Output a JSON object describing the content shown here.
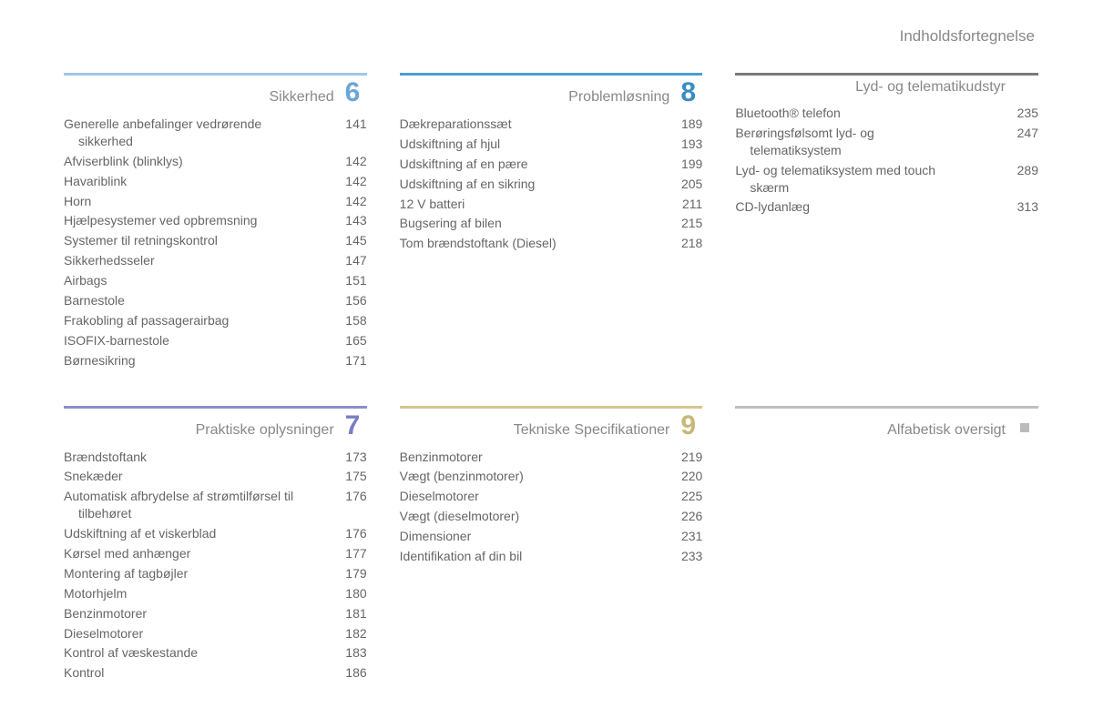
{
  "page_header": "Indholdsfortegnelse",
  "sections": [
    {
      "id": "sikkerhed",
      "title": "Sikkerhed",
      "number": "6",
      "border_color": "#9ec7e8",
      "number_color": "#6aa6d6",
      "row": 1,
      "col": 1,
      "entries": [
        {
          "label": "Generelle anbefalinger vedrørende",
          "label2": "sikkerhed",
          "page": "141"
        },
        {
          "label": "Afviserblink (blinklys)",
          "page": "142"
        },
        {
          "label": "Havariblink",
          "page": "142"
        },
        {
          "label": "Horn",
          "page": "142"
        },
        {
          "label": "Hjælpesystemer ved opbremsning",
          "page": "143"
        },
        {
          "label": "Systemer til retningskontrol",
          "page": "145"
        },
        {
          "label": "Sikkerhedsseler",
          "page": "147"
        },
        {
          "label": "Airbags",
          "page": "151"
        },
        {
          "label": "Barnestole",
          "page": "156"
        },
        {
          "label": "Frakobling af passagerairbag",
          "page": "158"
        },
        {
          "label": "ISOFIX-barnestole",
          "page": "165"
        },
        {
          "label": "Børnesikring",
          "page": "171"
        }
      ]
    },
    {
      "id": "problemlosning",
      "title": "Problemløsning",
      "number": "8",
      "border_color": "#4a9dcf",
      "number_color": "#3a8cc2",
      "row": 1,
      "col": 2,
      "entries": [
        {
          "label": "Dækreparationssæt",
          "page": "189"
        },
        {
          "label": "Udskiftning af hjul",
          "page": "193"
        },
        {
          "label": "Udskiftning af en pære",
          "page": "199"
        },
        {
          "label": "Udskiftning af en sikring",
          "page": "205"
        },
        {
          "label": "12 V batteri",
          "page": "211"
        },
        {
          "label": "Bugsering af bilen",
          "page": "215"
        },
        {
          "label": "Tom brændstoftank (Diesel)",
          "page": "218"
        }
      ]
    },
    {
      "id": "lyd-telematik",
      "title": "Lyd- og telematikudstyr",
      "number": "",
      "border_color": "#7a7a7a",
      "number_color": "#7a7a7a",
      "row": 1,
      "col": 3,
      "entries": [
        {
          "label": "Bluetooth® telefon",
          "page": "235"
        },
        {
          "label": "Berøringsfølsomt lyd- og",
          "label2": "telematiksystem",
          "page": "247"
        },
        {
          "label": "Lyd- og telematiksystem med touch",
          "label2": "skærm",
          "page": "289"
        },
        {
          "label": "CD-lydanlæg",
          "page": "313"
        }
      ]
    },
    {
      "id": "praktiske",
      "title": "Praktiske oplysninger",
      "number": "7",
      "border_color": "#8a8ec9",
      "number_color": "#7a7fc0",
      "row": 2,
      "col": 1,
      "entries": [
        {
          "label": "Brændstoftank",
          "page": "173"
        },
        {
          "label": "Snekæder",
          "page": "175"
        },
        {
          "label": "Automatisk afbrydelse af strømtilførsel til",
          "label2": "tilbehøret",
          "page": "176"
        },
        {
          "label": "Udskiftning af et viskerblad",
          "page": "176"
        },
        {
          "label": "Kørsel med anhænger",
          "page": "177"
        },
        {
          "label": "Montering af tagbøjler",
          "page": "179"
        },
        {
          "label": "Motorhjelm",
          "page": "180"
        },
        {
          "label": "Benzinmotorer",
          "page": "181"
        },
        {
          "label": "Dieselmotorer",
          "page": "182"
        },
        {
          "label": "Kontrol af væskestande",
          "page": "183"
        },
        {
          "label": "Kontrol",
          "page": "186"
        }
      ]
    },
    {
      "id": "tekniske",
      "title": "Tekniske Specifikationer",
      "number": "9",
      "border_color": "#d4c68f",
      "number_color": "#c7b877",
      "row": 2,
      "col": 2,
      "entries": [
        {
          "label": "Benzinmotorer",
          "page": "219"
        },
        {
          "label": "Vægt (benzinmotorer)",
          "page": "220"
        },
        {
          "label": "Dieselmotorer",
          "page": "225"
        },
        {
          "label": "Vægt (dieselmotorer)",
          "page": "226"
        },
        {
          "label": "Dimensioner",
          "page": "231"
        },
        {
          "label": "Identifikation af din bil",
          "page": "233"
        }
      ]
    },
    {
      "id": "alfabetisk",
      "title": "Alfabetisk oversigt",
      "number": "",
      "number_marker": "square",
      "border_color": "#bfbfbf",
      "number_color": "#bfbfbf",
      "row": 2,
      "col": 3,
      "entries": []
    }
  ]
}
